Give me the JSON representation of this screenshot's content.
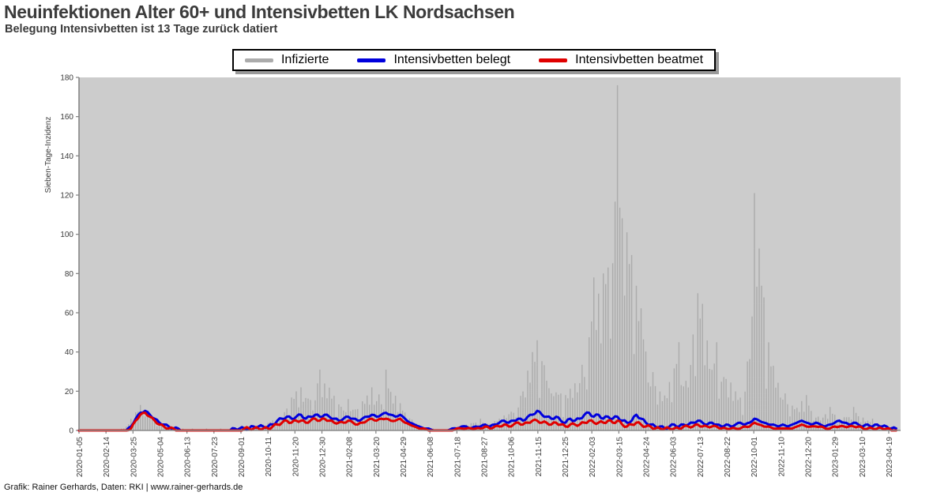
{
  "header": {
    "title": "Neuinfektionen Alter 60+ und Intensivbetten LK Nordsachsen",
    "subtitle": "Belegung Intensivbetten ist 13 Tage zurück datiert"
  },
  "legend": {
    "items": [
      {
        "label": "Infizierte",
        "color": "#ababab"
      },
      {
        "label": "Intensivbetten belegt",
        "color": "#0000dd"
      },
      {
        "label": "Intensivbetten beatmet",
        "color": "#e00000"
      }
    ]
  },
  "footer": {
    "credit": "Grafik: Rainer Gerhards, Daten: RKI | www.rainer-gerhards.de"
  },
  "chart_data": {
    "type": "line",
    "title": "Neuinfektionen Alter 60+ und Intensivbetten LK Nordsachsen",
    "subtitle": "Belegung Intensivbetten ist 13 Tage zurück datiert",
    "xlabel": "",
    "ylabel": "Sieben-Tage-Inzidenz",
    "ylim": [
      0,
      180
    ],
    "yticks": [
      0,
      20,
      40,
      60,
      80,
      100,
      120,
      140,
      160,
      180
    ],
    "plot_bg": "#cccccc",
    "axis_color": "#808080",
    "tick_label_color": "#3a3a3a",
    "legend_position": "top",
    "grid": false,
    "x_start": "2020-01-05",
    "point_interval_days": 7,
    "x_tick_interval_days": 40,
    "xticklabels": [
      "2020-01-05",
      "2020-02-14",
      "2020-03-25",
      "2020-05-04",
      "2020-06-13",
      "2020-07-23",
      "2020-09-01",
      "2020-10-11",
      "2020-11-20",
      "2020-12-30",
      "2021-02-08",
      "2021-03-20",
      "2021-04-29",
      "2021-06-08",
      "2021-07-18",
      "2021-08-27",
      "2021-10-06",
      "2021-11-15",
      "2021-12-25",
      "2022-02-03",
      "2022-03-15",
      "2022-04-24",
      "2022-06-03",
      "2022-07-13",
      "2022-08-22",
      "2022-10-01",
      "2022-11-10",
      "2022-12-20",
      "2023-01-29",
      "2023-03-10",
      "2023-04-19"
    ],
    "series": [
      {
        "name": "Infizierte",
        "color": "#ababab",
        "style": "spikes",
        "values": [
          0,
          0,
          0,
          0,
          0,
          0,
          0,
          0,
          0,
          1,
          2,
          6,
          10,
          13,
          12,
          9,
          7,
          5,
          3,
          2,
          1,
          1,
          1,
          0,
          1,
          0,
          0,
          1,
          0,
          0,
          1,
          0,
          1,
          1,
          1,
          2,
          1,
          2,
          2,
          3,
          4,
          6,
          8,
          10,
          14,
          18,
          20,
          22,
          19,
          22,
          26,
          31,
          26,
          22,
          18,
          15,
          14,
          16,
          14,
          12,
          15,
          18,
          22,
          20,
          24,
          31,
          22,
          18,
          14,
          10,
          8,
          6,
          4,
          2,
          1,
          1,
          0,
          0,
          0,
          1,
          1,
          2,
          3,
          4,
          5,
          6,
          5,
          4,
          5,
          6,
          8,
          10,
          14,
          18,
          24,
          32,
          40,
          46,
          42,
          38,
          30,
          24,
          20,
          18,
          22,
          28,
          35,
          45,
          60,
          78,
          70,
          82,
          95,
          120,
          176,
          140,
          110,
          90,
          75,
          70,
          55,
          40,
          30,
          22,
          18,
          25,
          35,
          45,
          40,
          30,
          55,
          70,
          65,
          50,
          40,
          45,
          35,
          30,
          25,
          20,
          18,
          25,
          60,
          121,
          108,
          70,
          45,
          35,
          30,
          25,
          20,
          15,
          12,
          15,
          18,
          12,
          10,
          8,
          10,
          12,
          8,
          6,
          8,
          10,
          12,
          9,
          7,
          5,
          6,
          4,
          3,
          2,
          2,
          1
        ]
      },
      {
        "name": "Intensivbetten belegt",
        "color": "#0000dd",
        "style": "line",
        "values": [
          0,
          0,
          0,
          0,
          0,
          0,
          0,
          0,
          0,
          0,
          0,
          2,
          6,
          9,
          10,
          8,
          6,
          4,
          3,
          2,
          1,
          1,
          0,
          0,
          0,
          0,
          0,
          0,
          0,
          0,
          0,
          0,
          0,
          1,
          1,
          1,
          1,
          2,
          2,
          2,
          2,
          3,
          5,
          6,
          7,
          6,
          7,
          8,
          6,
          7,
          8,
          7,
          8,
          7,
          6,
          5,
          6,
          7,
          6,
          5,
          6,
          7,
          8,
          7,
          8,
          9,
          8,
          7,
          8,
          6,
          4,
          3,
          2,
          1,
          1,
          0,
          0,
          0,
          0,
          1,
          1,
          2,
          2,
          1,
          2,
          2,
          3,
          2,
          3,
          4,
          5,
          4,
          5,
          6,
          5,
          7,
          8,
          10,
          8,
          7,
          6,
          7,
          5,
          4,
          6,
          5,
          6,
          8,
          9,
          7,
          8,
          6,
          7,
          6,
          7,
          5,
          4,
          5,
          8,
          6,
          4,
          3,
          2,
          2,
          1,
          2,
          3,
          2,
          3,
          3,
          4,
          5,
          4,
          3,
          4,
          3,
          2,
          3,
          2,
          3,
          4,
          3,
          4,
          6,
          5,
          4,
          3,
          3,
          2,
          3,
          2,
          3,
          4,
          5,
          4,
          3,
          4,
          3,
          2,
          3,
          4,
          5,
          4,
          3,
          4,
          3,
          2,
          3,
          2,
          3,
          2,
          2,
          1,
          1
        ]
      },
      {
        "name": "Intensivbetten beatmet",
        "color": "#e00000",
        "style": "line",
        "values": [
          0,
          0,
          0,
          0,
          0,
          0,
          0,
          0,
          0,
          0,
          0,
          1,
          5,
          8,
          9,
          7,
          5,
          3,
          2,
          1,
          1,
          0,
          0,
          0,
          0,
          0,
          0,
          0,
          0,
          0,
          0,
          0,
          0,
          0,
          0,
          1,
          1,
          1,
          1,
          1,
          1,
          2,
          3,
          4,
          5,
          4,
          5,
          5,
          4,
          5,
          6,
          5,
          6,
          5,
          4,
          4,
          4,
          5,
          4,
          3,
          4,
          5,
          6,
          5,
          6,
          6,
          5,
          5,
          6,
          4,
          3,
          2,
          1,
          1,
          0,
          0,
          0,
          0,
          0,
          0,
          1,
          1,
          1,
          1,
          1,
          1,
          2,
          1,
          2,
          2,
          3,
          2,
          3,
          4,
          3,
          4,
          5,
          5,
          4,
          4,
          3,
          4,
          3,
          2,
          3,
          3,
          3,
          4,
          5,
          4,
          4,
          4,
          5,
          4,
          5,
          3,
          2,
          3,
          4,
          3,
          2,
          2,
          1,
          1,
          1,
          1,
          1,
          1,
          2,
          2,
          2,
          3,
          2,
          2,
          2,
          2,
          1,
          1,
          1,
          1,
          1,
          2,
          2,
          4,
          3,
          2,
          2,
          1,
          1,
          1,
          1,
          1,
          2,
          3,
          2,
          2,
          2,
          2,
          1,
          1,
          2,
          2,
          2,
          2,
          2,
          2,
          1,
          1,
          1,
          1,
          1,
          1,
          0,
          0
        ]
      }
    ]
  }
}
